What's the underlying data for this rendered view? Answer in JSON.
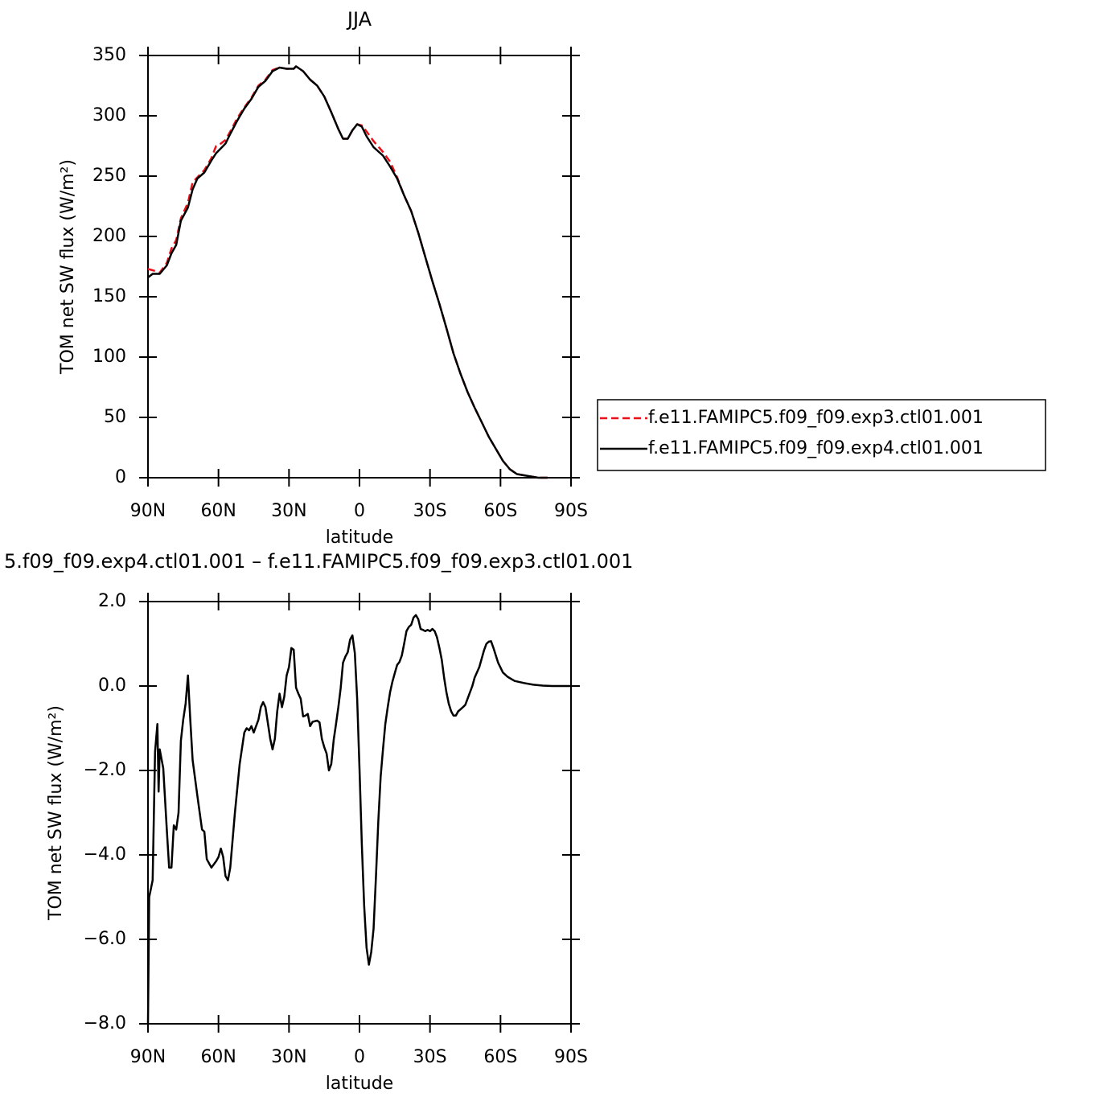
{
  "chart_data": [
    {
      "type": "line",
      "title": "JJA",
      "xlabel": "latitude",
      "ylabel": "TOM net SW flux (W/m²)",
      "xlim": [
        90,
        -90
      ],
      "ylim": [
        0,
        350
      ],
      "xticks": [
        {
          "value": 90,
          "label": "90N"
        },
        {
          "value": 60,
          "label": "60N"
        },
        {
          "value": 30,
          "label": "30N"
        },
        0,
        {
          "value": -30,
          "label": "30S"
        },
        {
          "value": -60,
          "label": "60S"
        },
        {
          "value": -90,
          "label": "90S"
        }
      ],
      "yticks": [
        0,
        50,
        100,
        150,
        200,
        250,
        300,
        350
      ],
      "legend": "right",
      "x": [
        90,
        88,
        85,
        82,
        80,
        78,
        76,
        73,
        71,
        69,
        66,
        63,
        61,
        59,
        57,
        55,
        52,
        49,
        46,
        43,
        40,
        37,
        34,
        31,
        28,
        27,
        24,
        21,
        18,
        15,
        12,
        9,
        7,
        5,
        3,
        1,
        -1,
        -3,
        -6,
        -10,
        -13,
        -16,
        -19,
        -22,
        -25,
        -28,
        -31,
        -34,
        -37,
        -40,
        -43,
        -46,
        -49,
        -52,
        -55,
        -58,
        -61,
        -64,
        -67,
        -70,
        -73,
        -76,
        -80
      ],
      "series": [
        {
          "name": "f.e11.FAMIPC5.f09_f09.exp3.ctl01.001",
          "color": "#e8111b",
          "style": "dashed",
          "values": [
            173,
            172,
            170,
            178,
            190,
            197,
            215,
            228,
            245,
            249,
            255,
            265,
            275,
            277,
            280,
            287,
            298,
            307,
            315,
            325,
            330,
            338,
            340,
            339,
            339,
            341,
            337,
            330,
            325,
            316,
            303,
            289,
            281,
            281,
            288,
            293,
            292,
            287,
            279,
            270,
            262,
            249,
            234,
            221,
            203,
            183,
            163,
            144,
            124,
            103,
            86,
            71,
            58,
            46,
            34,
            24,
            14,
            7,
            3,
            2,
            1,
            0,
            0
          ]
        },
        {
          "name": "f.e11.FAMIPC5.f09_f09.exp4.ctl01.001",
          "color": "#000000",
          "style": "solid",
          "values": [
            166,
            169,
            169,
            176,
            186,
            193,
            213,
            224,
            239,
            248,
            253,
            263,
            269,
            273,
            277,
            285,
            296,
            306,
            314,
            324,
            329,
            337,
            340,
            339,
            339,
            341,
            337,
            330,
            325,
            316,
            303,
            289,
            281,
            281,
            288,
            293,
            291,
            283,
            274,
            267,
            258,
            248,
            234,
            221,
            203,
            183,
            163,
            144,
            124,
            103,
            86,
            71,
            58,
            46,
            34,
            24,
            14,
            7,
            3,
            2,
            1,
            0,
            0
          ]
        }
      ]
    },
    {
      "type": "line",
      "title": "5.f09_f09.exp4.ctl01.001  –  f.e11.FAMIPC5.f09_f09.exp3.ctl01.001",
      "xlabel": "latitude",
      "ylabel": "TOM net SW flux (W/m²)",
      "xlim": [
        90,
        -90
      ],
      "ylim": [
        -8,
        2
      ],
      "xticks": [
        {
          "value": 90,
          "label": "90N"
        },
        {
          "value": 60,
          "label": "60N"
        },
        {
          "value": 30,
          "label": "30N"
        },
        0,
        {
          "value": -30,
          "label": "30S"
        },
        {
          "value": -60,
          "label": "60S"
        },
        {
          "value": -90,
          "label": "90S"
        }
      ],
      "yticks": [
        {
          "value": -8,
          "label": "−8.0"
        },
        {
          "value": -6,
          "label": "−6.0"
        },
        {
          "value": -4,
          "label": "−4.0"
        },
        {
          "value": -2,
          "label": "−2.0"
        },
        {
          "value": 0,
          "label": "0.0"
        },
        {
          "value": 2,
          "label": "2.0"
        }
      ],
      "x": [
        90,
        89.5,
        88,
        87,
        86,
        85.5,
        85,
        83.5,
        82,
        81,
        80,
        79,
        78,
        77,
        76,
        75,
        74,
        73,
        72,
        71,
        69,
        67,
        66,
        65,
        63,
        61,
        60,
        59,
        58,
        57,
        56,
        55,
        53,
        51,
        49,
        48,
        47,
        46,
        45,
        43,
        42,
        41,
        40,
        38,
        37,
        36,
        35,
        34,
        33,
        32,
        31,
        30,
        29,
        28,
        27,
        26,
        25,
        24,
        23,
        22,
        21,
        20,
        18,
        17,
        16,
        15,
        14,
        13,
        12,
        11,
        10,
        9,
        8,
        7,
        6,
        5,
        4,
        3,
        2,
        1,
        0,
        -1,
        -2,
        -3,
        -4,
        -5,
        -6,
        -7,
        -8,
        -9,
        -10,
        -11,
        -12,
        -13,
        -14,
        -15,
        -16,
        -17,
        -18,
        -19,
        -20,
        -21,
        -22,
        -23,
        -24,
        -25,
        -26,
        -27,
        -28,
        -29,
        -30,
        -31,
        -32,
        -33,
        -34,
        -35,
        -36,
        -37,
        -38,
        -39,
        -40,
        -41,
        -42,
        -43,
        -44,
        -45,
        -46,
        -48,
        -49,
        -51,
        -53,
        -54,
        -55,
        -56,
        -57,
        -59,
        -61,
        -63,
        -66,
        -70,
        -74,
        -78,
        -82,
        -86,
        -90
      ],
      "color": "#000000",
      "values": [
        -8,
        -5.0,
        -4.6,
        -1.56,
        -0.9,
        -2.5,
        -1.5,
        -1.95,
        -3.4,
        -4.3,
        -4.3,
        -3.3,
        -3.4,
        -3.0,
        -1.3,
        -0.8,
        -0.42,
        0.25,
        -0.8,
        -1.75,
        -2.6,
        -3.4,
        -3.45,
        -4.1,
        -4.3,
        -4.15,
        -4.05,
        -3.85,
        -4.05,
        -4.5,
        -4.6,
        -4.3,
        -3.0,
        -1.85,
        -1.1,
        -1.0,
        -1.05,
        -0.95,
        -1.1,
        -0.8,
        -0.5,
        -0.38,
        -0.5,
        -1.25,
        -1.5,
        -1.25,
        -0.6,
        -0.18,
        -0.5,
        -0.25,
        0.25,
        0.45,
        0.9,
        0.86,
        -0.04,
        -0.18,
        -0.3,
        -0.72,
        -0.7,
        -0.66,
        -0.95,
        -0.85,
        -0.82,
        -0.86,
        -1.25,
        -1.45,
        -1.6,
        -2.0,
        -1.85,
        -1.28,
        -0.9,
        -0.5,
        -0.05,
        0.55,
        0.7,
        0.8,
        1.1,
        1.2,
        0.78,
        -0.3,
        -1.95,
        -3.75,
        -5.2,
        -6.2,
        -6.6,
        -6.3,
        -5.75,
        -4.5,
        -3.2,
        -2.15,
        -1.5,
        -0.9,
        -0.5,
        -0.15,
        0.1,
        0.3,
        0.5,
        0.57,
        0.72,
        1.0,
        1.3,
        1.4,
        1.45,
        1.62,
        1.68,
        1.58,
        1.35,
        1.33,
        1.3,
        1.33,
        1.3,
        1.35,
        1.3,
        1.15,
        0.9,
        0.62,
        0.2,
        -0.15,
        -0.42,
        -0.6,
        -0.7,
        -0.7,
        -0.6,
        -0.55,
        -0.5,
        -0.45,
        -0.3,
        0,
        0.2,
        0.45,
        0.85,
        1.0,
        1.05,
        1.06,
        0.9,
        0.55,
        0.32,
        0.22,
        0.12,
        0.07,
        0.03,
        0.01,
        0,
        0,
        0
      ]
    }
  ]
}
